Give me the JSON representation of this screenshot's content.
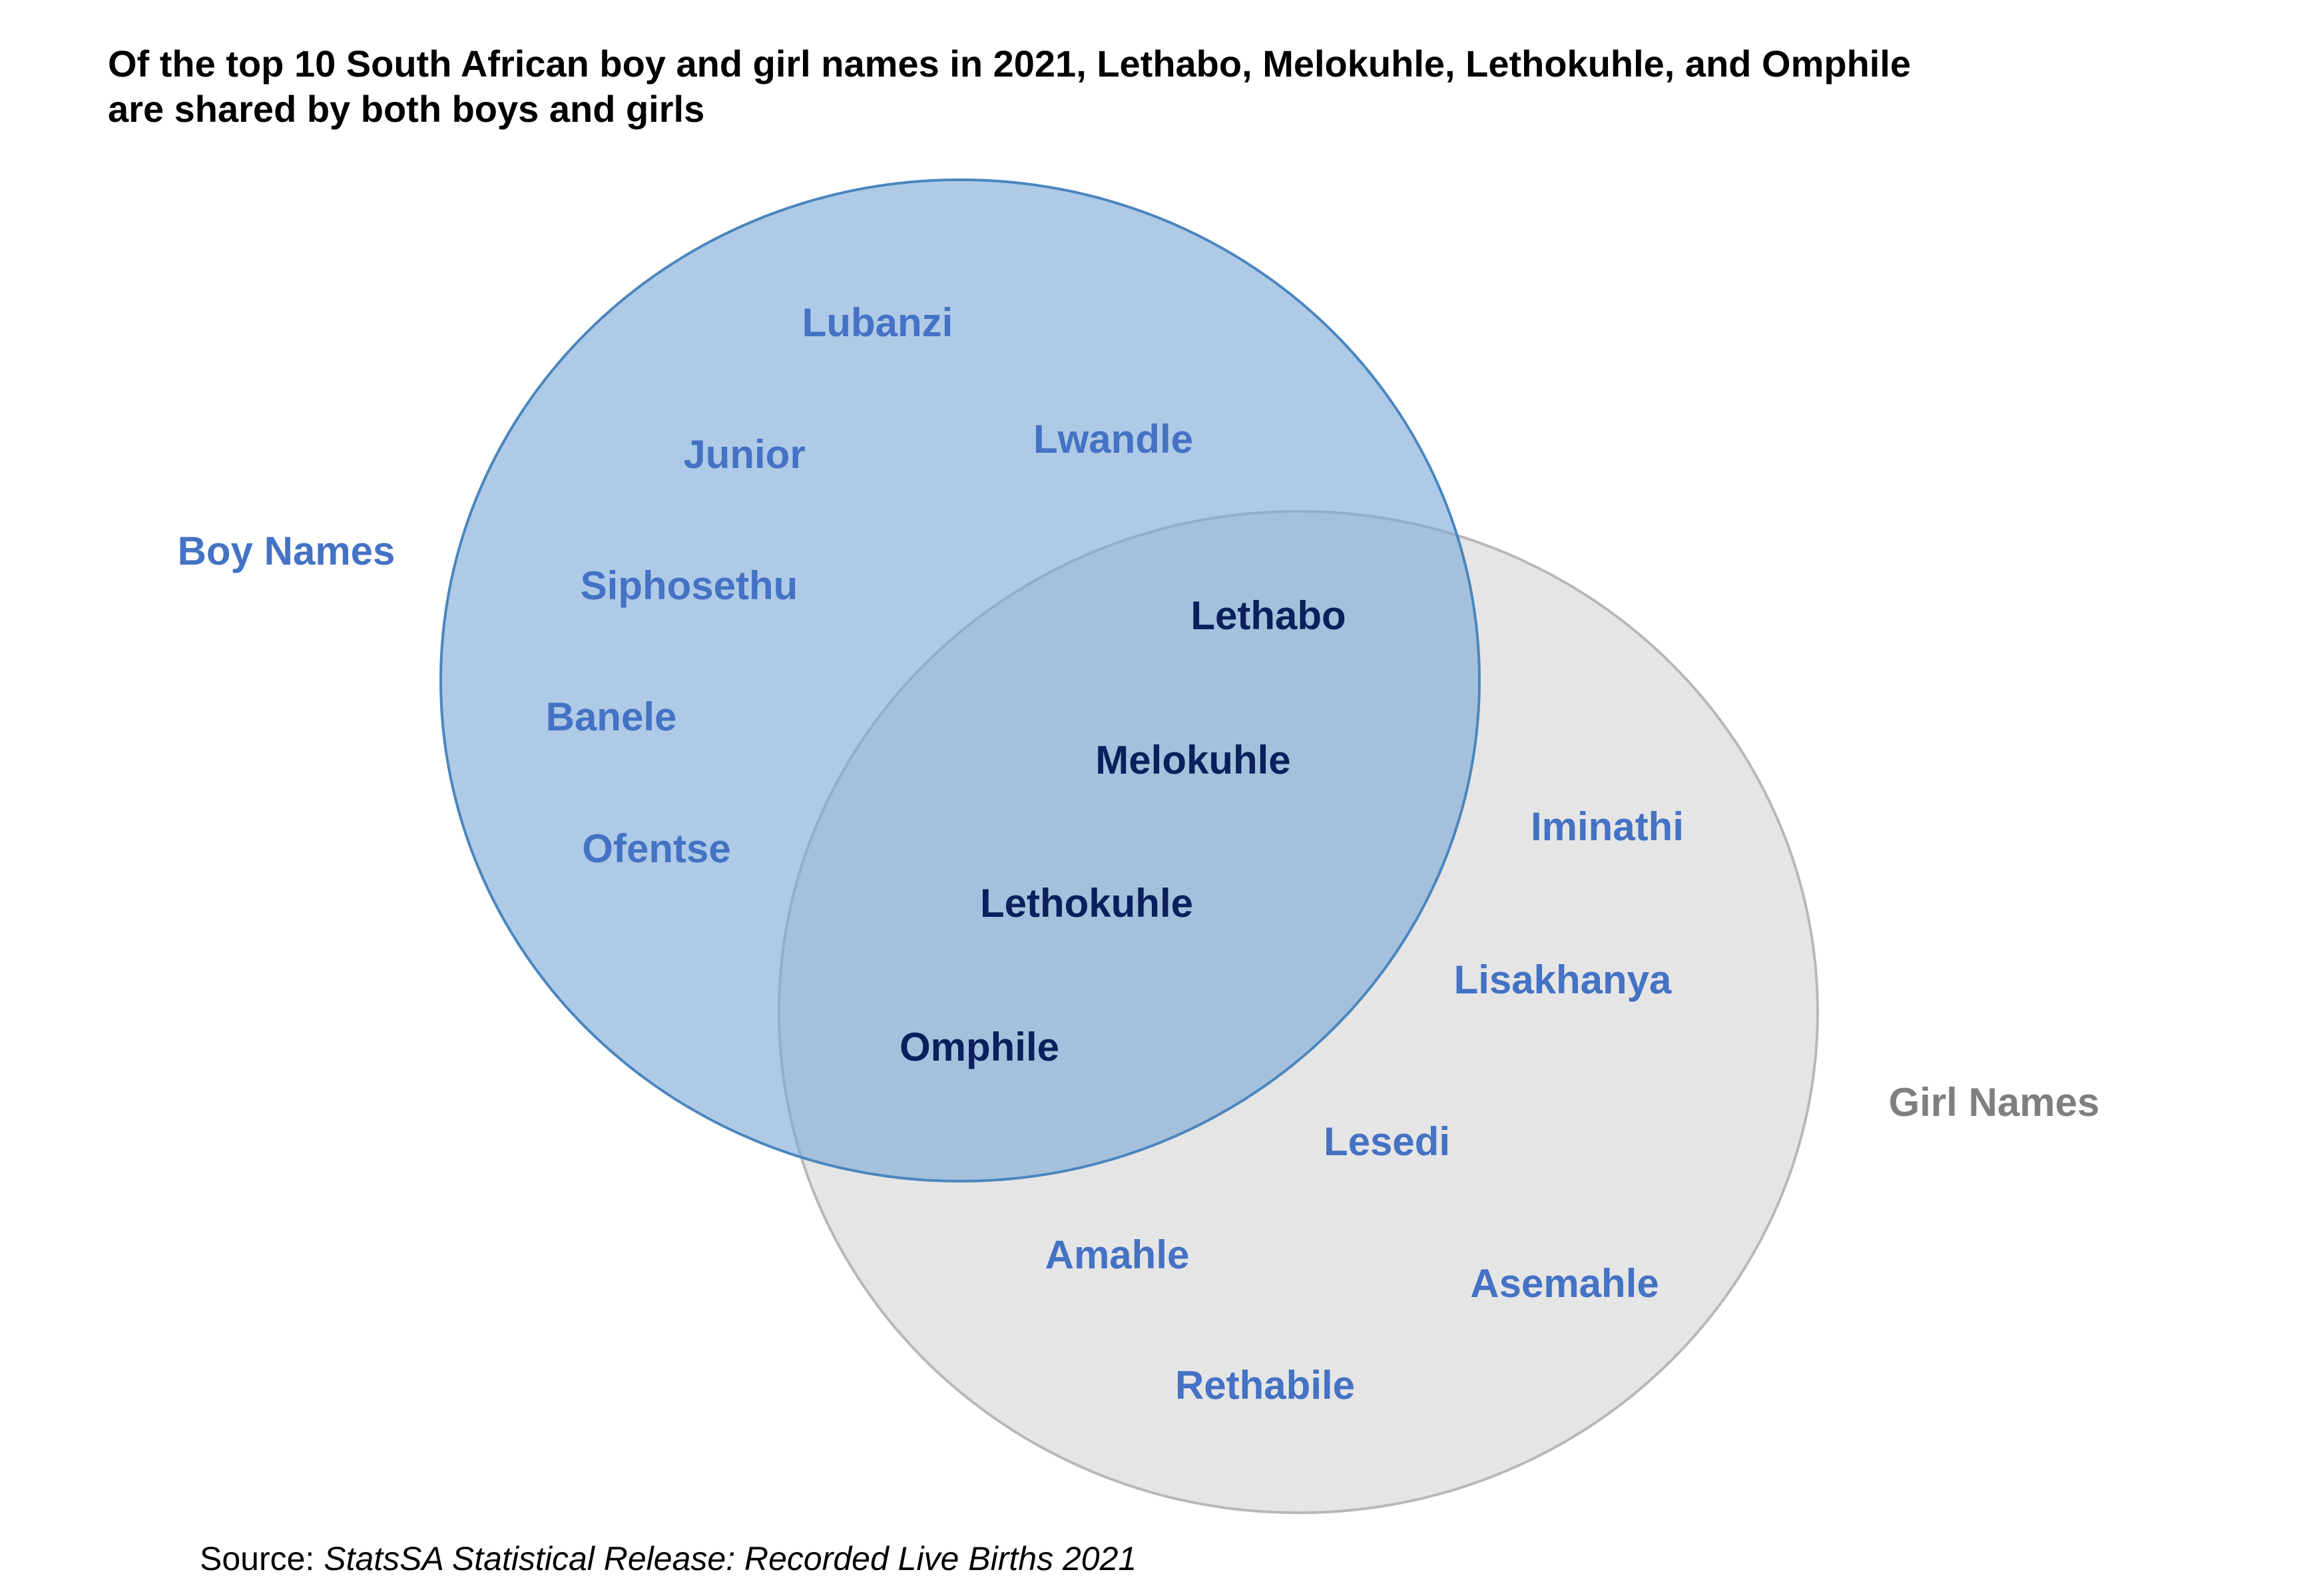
{
  "title_lines": [
    "Of the top 10 South African boy and girl names in 2021, Lethabo, Melokuhle, Lethokuhle, and Omphile",
    "are shared by both boys and girls"
  ],
  "sets": {
    "boys": {
      "label": "Boy Names",
      "label_color": "#4472c4",
      "fill": "#7aa7d6",
      "stroke": "#4a86be"
    },
    "girls": {
      "label": "Girl Names",
      "label_color": "#7f7f7f",
      "fill": "#d4d4d4",
      "stroke": "#b8b8b8"
    }
  },
  "names": {
    "boys_only": [
      "Lubanzi",
      "Lwandle",
      "Junior",
      "Siphosethu",
      "Banele",
      "Ofentse"
    ],
    "shared": [
      "Lethabo",
      "Melokuhle",
      "Lethokuhle",
      "Omphile"
    ],
    "girls_only": [
      "Iminathi",
      "Lisakhanya",
      "Lesedi",
      "Amahle",
      "Asemahle",
      "Rethabile"
    ]
  },
  "colors": {
    "exclusive_text": "#4472c4",
    "shared_text": "#0a1f5c"
  },
  "source": {
    "prefix": "Source: ",
    "citation": "StatsSA Statistical Release: Recorded Live Births 2021"
  }
}
